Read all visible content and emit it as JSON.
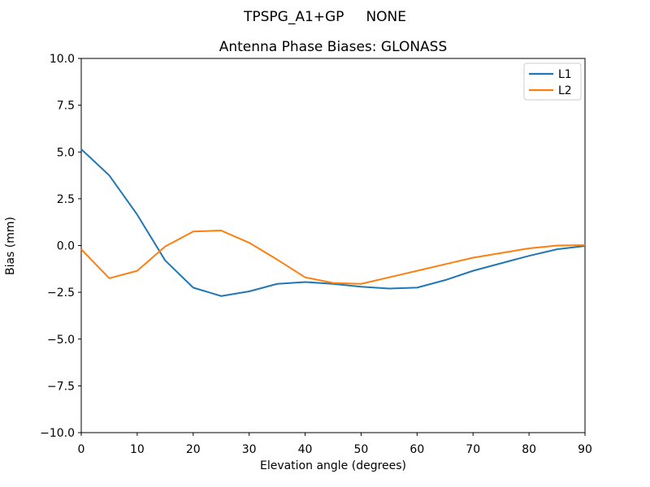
{
  "figure": {
    "suptitle": "TPSPG_A1+GP     NONE",
    "axes_title": "Antenna Phase Biases: GLONASS",
    "xlabel": "Elevation angle (degrees)",
    "ylabel": "Bias (mm)"
  },
  "chart_data": {
    "type": "line",
    "suptitle": "TPSPG_A1+GP     NONE",
    "title": "Antenna Phase Biases: GLONASS",
    "xlabel": "Elevation angle (degrees)",
    "ylabel": "Bias (mm)",
    "xlim": [
      0,
      90
    ],
    "ylim": [
      -10,
      10
    ],
    "x_ticks": [
      0,
      10,
      20,
      30,
      40,
      50,
      60,
      70,
      80,
      90
    ],
    "x_tick_labels": [
      "0",
      "10",
      "20",
      "30",
      "40",
      "50",
      "60",
      "70",
      "80",
      "90"
    ],
    "y_ticks": [
      -10,
      -7.5,
      -5,
      -2.5,
      0,
      2.5,
      5,
      7.5,
      10
    ],
    "y_tick_labels": [
      "−10.0",
      "−7.5",
      "−5.0",
      "−2.5",
      "0.0",
      "2.5",
      "5.0",
      "7.5",
      "10.0"
    ],
    "grid": false,
    "legend": {
      "position": "upper right",
      "entries": [
        "L1",
        "L2"
      ]
    },
    "x": [
      0,
      5,
      10,
      15,
      20,
      25,
      30,
      35,
      40,
      45,
      50,
      55,
      60,
      65,
      70,
      75,
      80,
      85,
      90
    ],
    "series": [
      {
        "name": "L1",
        "color": "#1f77b4",
        "values": [
          5.15,
          3.75,
          1.65,
          -0.8,
          -2.25,
          -2.7,
          -2.45,
          -2.05,
          -1.95,
          -2.05,
          -2.2,
          -2.3,
          -2.25,
          -1.85,
          -1.35,
          -0.95,
          -0.55,
          -0.2,
          -0.02
        ]
      },
      {
        "name": "L2",
        "color": "#ff7f0e",
        "values": [
          -0.2,
          -1.75,
          -1.35,
          -0.05,
          0.75,
          0.8,
          0.15,
          -0.75,
          -1.7,
          -2.0,
          -2.05,
          -1.7,
          -1.35,
          -1.0,
          -0.65,
          -0.4,
          -0.15,
          0.0,
          0.02
        ]
      }
    ],
    "colors": {
      "axes_edge": "#000000",
      "background": "#ffffff",
      "legend_edge": "#cccccc"
    }
  }
}
